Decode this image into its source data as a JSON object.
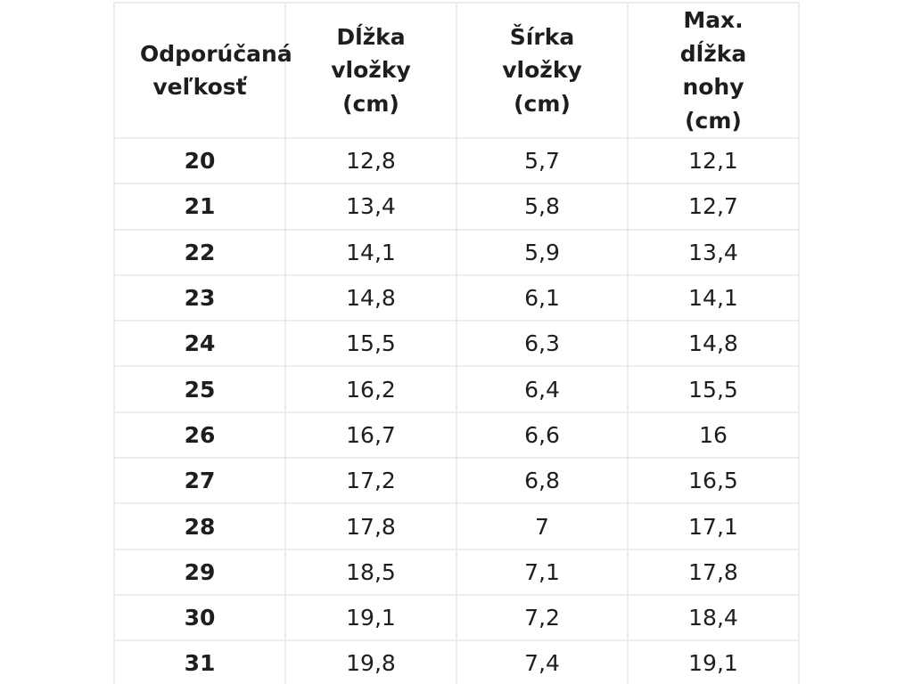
{
  "colors": {
    "background": "#ffffff",
    "text": "#1e1e1e",
    "border": "#ececec"
  },
  "chart_data": {
    "type": "table",
    "columns": [
      "Odporúčaná veľkosť",
      "Dĺžka vložky (cm)",
      "Šírka vložky (cm)",
      "Max. dĺžka nohy (cm)"
    ],
    "rows": [
      [
        "20",
        "12,8",
        "5,7",
        "12,1"
      ],
      [
        "21",
        "13,4",
        "5,8",
        "12,7"
      ],
      [
        "22",
        "14,1",
        "5,9",
        "13,4"
      ],
      [
        "23",
        "14,8",
        "6,1",
        "14,1"
      ],
      [
        "24",
        "15,5",
        "6,3",
        "14,8"
      ],
      [
        "25",
        "16,2",
        "6,4",
        "15,5"
      ],
      [
        "26",
        "16,7",
        "6,6",
        "16"
      ],
      [
        "27",
        "17,2",
        "6,8",
        "16,5"
      ],
      [
        "28",
        "17,8",
        "7",
        "17,1"
      ],
      [
        "29",
        "18,5",
        "7,1",
        "17,8"
      ],
      [
        "30",
        "19,1",
        "7,2",
        "18,4"
      ],
      [
        "31",
        "19,8",
        "7,4",
        "19,1"
      ]
    ]
  }
}
